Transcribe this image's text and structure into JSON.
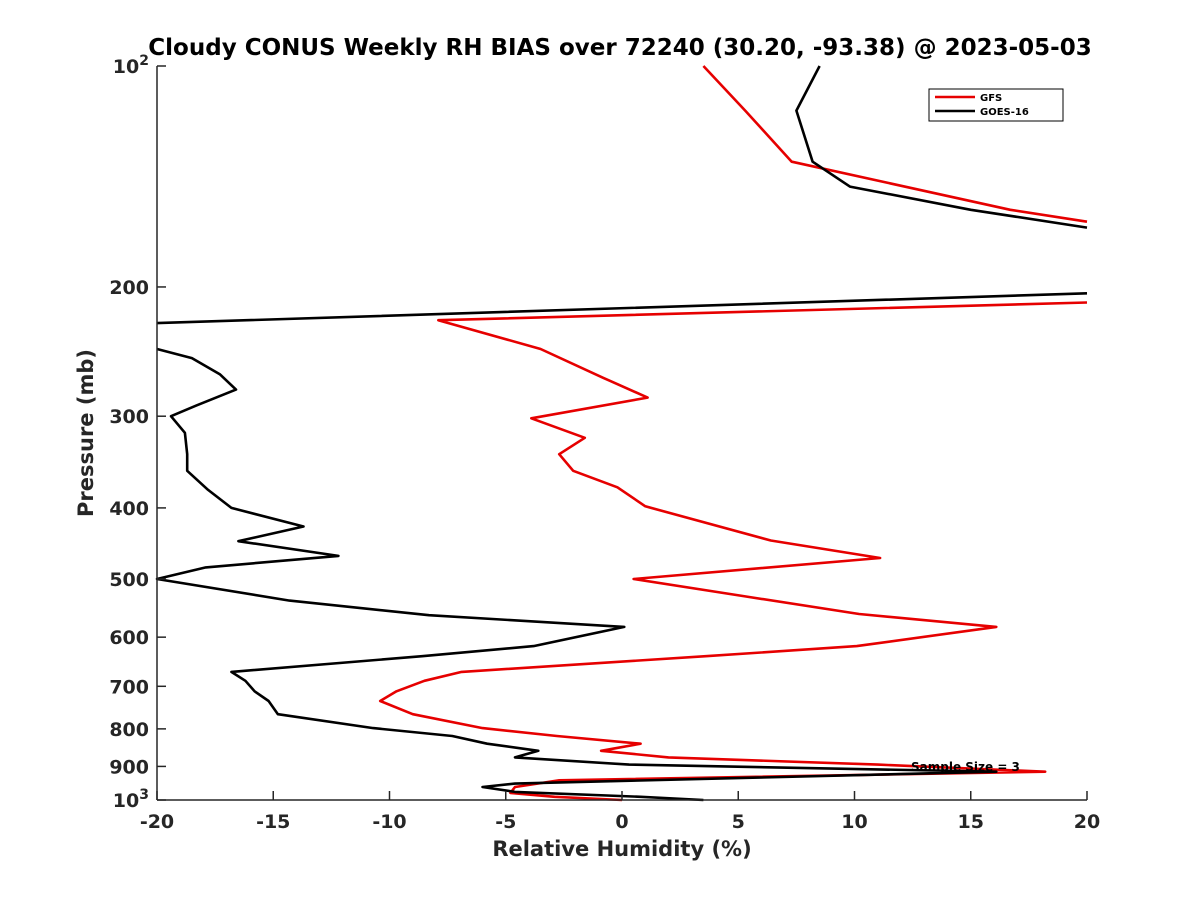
{
  "chart_data": {
    "type": "line",
    "title": "Cloudy CONUS Weekly RH BIAS over 72240 (30.20, -93.38) @ 2023-05-03",
    "xlabel": "Relative Humidity (%)",
    "ylabel": "Pressure (mb)",
    "xlim": [
      -20,
      20
    ],
    "ylim": [
      100,
      1000
    ],
    "yscale": "log",
    "yreversed": true,
    "grid": false,
    "legend_position": "top-right",
    "x_ticks": [
      -20,
      -15,
      -10,
      -5,
      0,
      5,
      10,
      15,
      20
    ],
    "x_tick_labels": [
      "-20",
      "-15",
      "-10",
      "-5",
      "0",
      "5",
      "10",
      "15",
      "20"
    ],
    "y_ticks": [
      100,
      200,
      300,
      400,
      500,
      600,
      700,
      800,
      900,
      1000
    ],
    "y_tick_labels": [
      {
        "base": "10",
        "exp": "2"
      },
      {
        "base": "200"
      },
      {
        "base": "300"
      },
      {
        "base": "400"
      },
      {
        "base": "500"
      },
      {
        "base": "600"
      },
      {
        "base": "700"
      },
      {
        "base": "800"
      },
      {
        "base": "900"
      },
      {
        "base": "10",
        "exp": "3"
      }
    ],
    "annotation": "Sample Size = 3",
    "series": [
      {
        "name": "GFS",
        "color": "#e60000",
        "points": [
          [
            3.5,
            100
          ],
          [
            5.3,
            115
          ],
          [
            7.3,
            135
          ],
          [
            16.7,
            157
          ],
          [
            20,
            163
          ],
          [
            null,
            null
          ],
          [
            20,
            210
          ],
          [
            -7.9,
            222
          ],
          [
            -3.5,
            243
          ],
          [
            -0.8,
            266
          ],
          [
            1.1,
            283
          ],
          [
            -3.9,
            302
          ],
          [
            -1.6,
            321
          ],
          [
            -2.7,
            338
          ],
          [
            -2.1,
            356
          ],
          [
            -0.2,
            375
          ],
          [
            1.0,
            398
          ],
          [
            6.4,
            443
          ],
          [
            11.1,
            468
          ],
          [
            0.5,
            500
          ],
          [
            5.3,
            528
          ],
          [
            10.2,
            558
          ],
          [
            16.1,
            581
          ],
          [
            10.1,
            617
          ],
          [
            3.6,
            637
          ],
          [
            -6.9,
            669
          ],
          [
            -8.5,
            688
          ],
          [
            -9.7,
            711
          ],
          [
            -10.4,
            733
          ],
          [
            -9.0,
            764
          ],
          [
            -6.0,
            798
          ],
          [
            -2.8,
            818
          ],
          [
            0.8,
            838
          ],
          [
            -0.9,
            857
          ],
          [
            2.0,
            875
          ],
          [
            11.0,
            895
          ],
          [
            18.2,
            915
          ],
          [
            -2.7,
            940
          ],
          [
            -4.6,
            960
          ],
          [
            -4.8,
            978
          ],
          [
            -2.9,
            990
          ],
          [
            0.0,
            1000
          ]
        ]
      },
      {
        "name": "GOES-16",
        "color": "#000000",
        "points": [
          [
            8.5,
            100
          ],
          [
            7.5,
            115
          ],
          [
            8.2,
            135
          ],
          [
            9.8,
            146
          ],
          [
            15.0,
            157
          ],
          [
            20,
            166
          ],
          [
            null,
            null
          ],
          [
            20,
            204
          ],
          [
            -20,
            224
          ],
          [
            null,
            null
          ],
          [
            -20,
            243
          ],
          [
            -18.5,
            250
          ],
          [
            -17.3,
            263
          ],
          [
            -16.6,
            276
          ],
          [
            -18.3,
            290
          ],
          [
            -19.4,
            300
          ],
          [
            -18.8,
            316
          ],
          [
            -18.7,
            338
          ],
          [
            -18.7,
            356
          ],
          [
            -17.8,
            378
          ],
          [
            -16.8,
            400
          ],
          [
            -13.7,
            424
          ],
          [
            -16.5,
            444
          ],
          [
            -12.2,
            465
          ],
          [
            -17.9,
            482
          ],
          [
            -20,
            500
          ],
          [
            -14.3,
            535
          ],
          [
            -8.3,
            560
          ],
          [
            0.1,
            581
          ],
          [
            -3.8,
            617
          ],
          [
            -8.6,
            637
          ],
          [
            -16.8,
            669
          ],
          [
            -16.2,
            688
          ],
          [
            -15.8,
            711
          ],
          [
            -15.2,
            733
          ],
          [
            -14.8,
            764
          ],
          [
            -10.7,
            798
          ],
          [
            -7.3,
            818
          ],
          [
            -5.8,
            838
          ],
          [
            -3.6,
            857
          ],
          [
            -4.6,
            875
          ],
          [
            0.3,
            895
          ],
          [
            16.1,
            915
          ],
          [
            -4.6,
            950
          ],
          [
            -6.0,
            960
          ],
          [
            -4.6,
            975
          ],
          [
            0.8,
            990
          ],
          [
            3.5,
            1000
          ]
        ]
      }
    ]
  }
}
